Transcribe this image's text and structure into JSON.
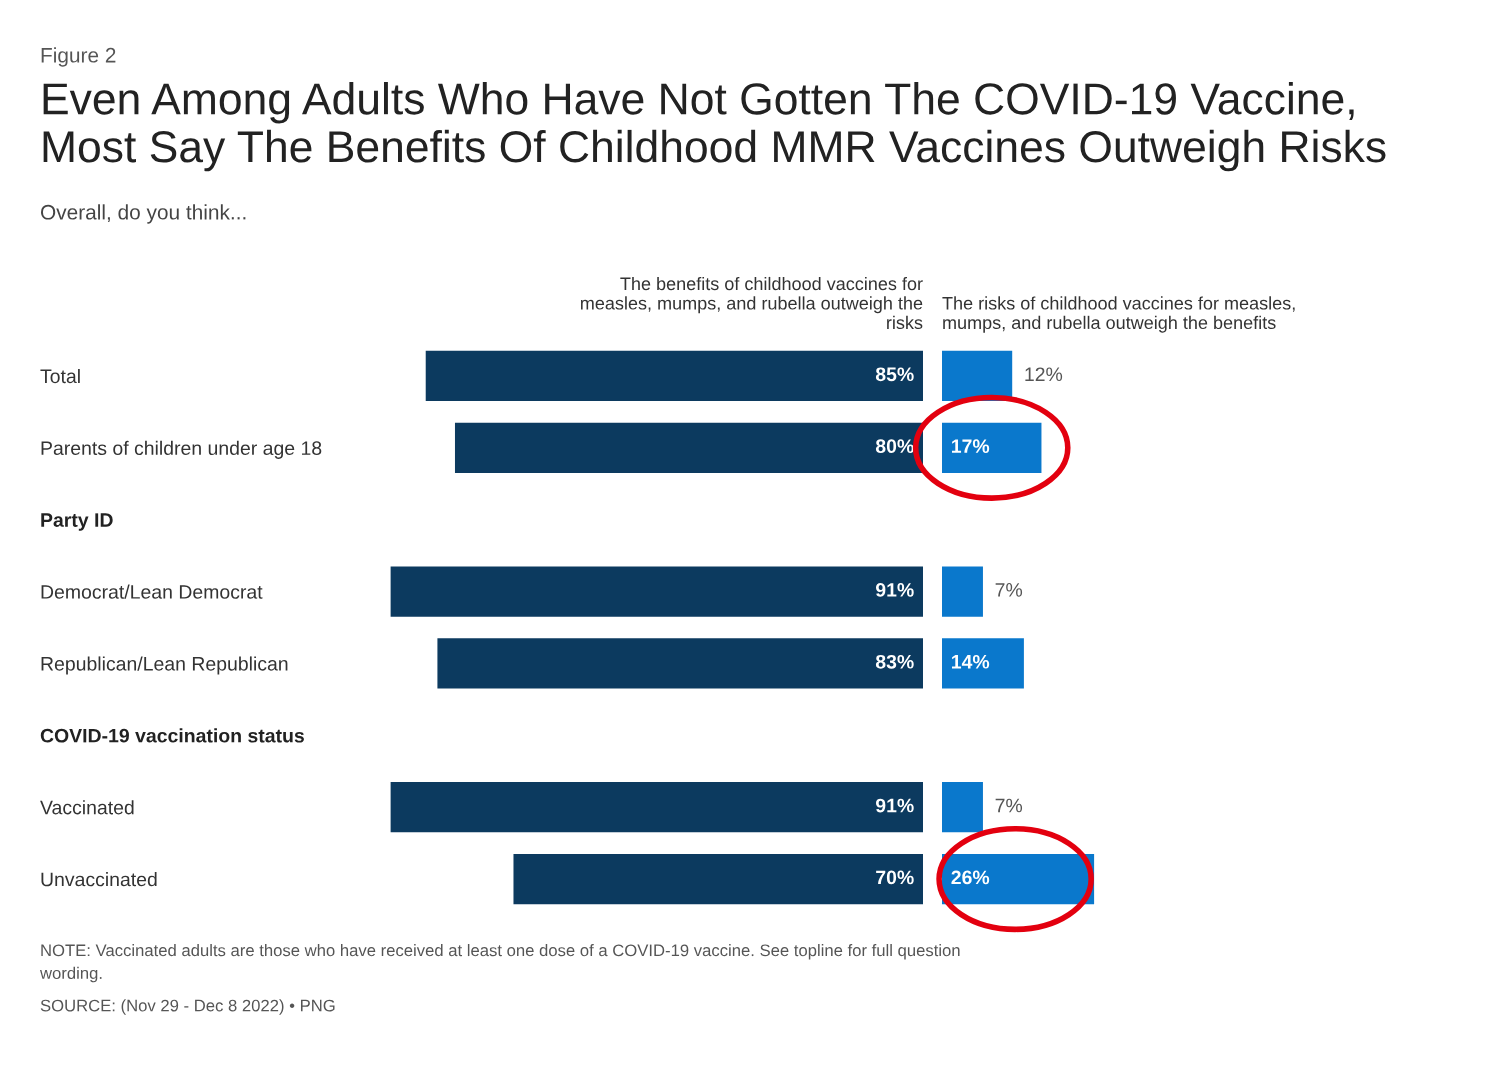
{
  "chart_data": [
    {
      "type": "bar",
      "orientation": "horizontal",
      "title": "Even Among Adults Who Have Not Gotten The COVID-19 Vaccine,\nMost Say The Benefits Of Childhood MMR Vaccines Outweigh Risks",
      "subtitle": "Overall, do you think...",
      "annotations": [
        "Figure 2",
        "NOTE: Vaccinated adults are those who have received at least one dose of a COVID-19 vaccine. See topline for full question\nwording.",
        "SOURCE: (Nov 29 - Dec 8 2022) • PNG"
      ],
      "categories": [
        "Total",
        "Parents of children under age 18",
        "Party ID",
        "Democrat/Lean Democrat",
        "Republican/Lean Republican",
        "COVID-19 vaccination status",
        "Vaccinated",
        "Unvaccinated"
      ],
      "series": [
        {
          "name": "The benefits of childhood vaccines for\nmeasles, mumps, and rubella outweigh the\nrisks",
          "color": "#0c3a5f",
          "values": [
            85,
            80,
            null,
            91,
            83,
            null,
            91,
            70
          ],
          "value_labels": [
            "85%",
            "80%",
            null,
            "91%",
            "83%",
            null,
            "91%",
            "70%"
          ]
        }
      ],
      "tick_labels": "y",
      "legend": false,
      "grid": false
    },
    {
      "type": "bar",
      "orientation": "horizontal",
      "categories": [
        null,
        null,
        null,
        null,
        null,
        null,
        null,
        null
      ],
      "series": [
        {
          "name": "The risks of childhood vaccines for measles,\nmumps, and rubella outweigh the benefits",
          "color": "#0a78cc",
          "values": [
            12,
            17,
            null,
            7,
            14,
            null,
            7,
            26
          ],
          "value_labels": [
            "12%",
            "17%",
            null,
            "7%",
            "14%",
            null,
            "7%",
            "26%"
          ]
        }
      ],
      "tick_labels": false,
      "legend": false,
      "grid": false
    }
  ]
}
